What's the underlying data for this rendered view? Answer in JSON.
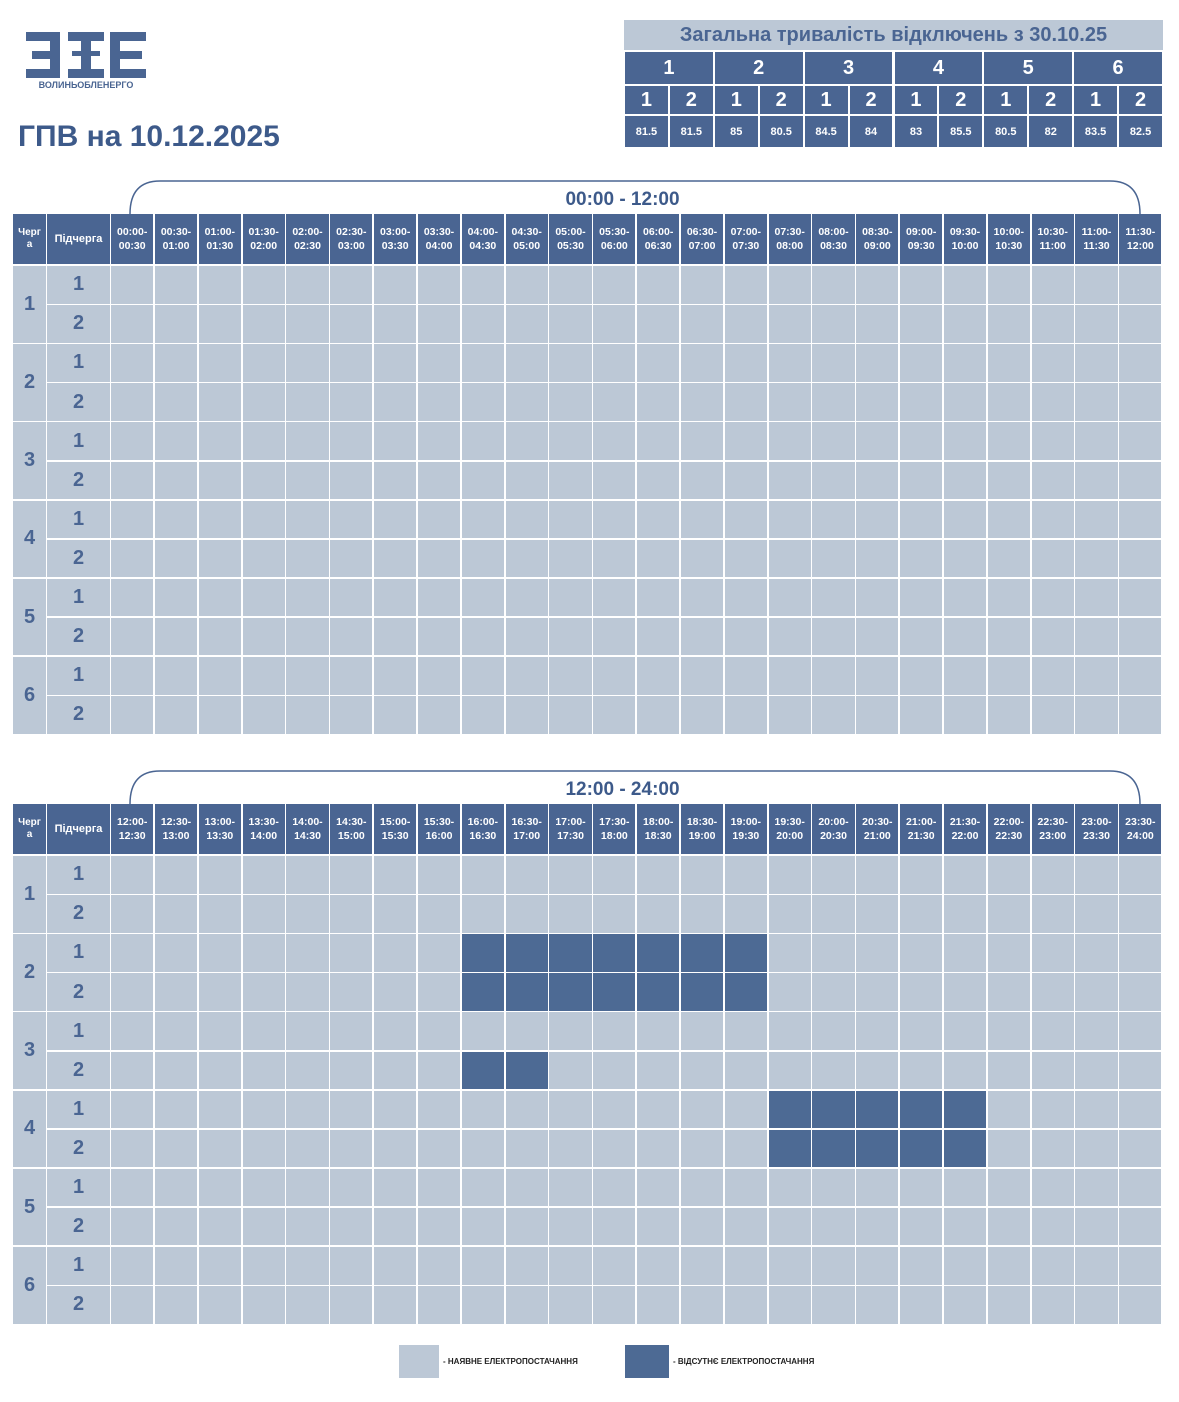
{
  "logo": {
    "name": "ВОЛИНЬОБЛЕНЕРГО"
  },
  "title": "ГПВ на 10.12.2025",
  "summary": {
    "title": "Загальна тривалість відключень з 30.10.25",
    "groups": [
      "1",
      "2",
      "3",
      "4",
      "5",
      "6"
    ],
    "subgroups": [
      "1",
      "2"
    ],
    "values": [
      [
        81.5,
        81.5
      ],
      [
        85,
        80.5
      ],
      [
        84.5,
        84
      ],
      [
        83,
        85.5
      ],
      [
        80.5,
        82
      ],
      [
        83.5,
        82.5
      ]
    ]
  },
  "schedules": [
    {
      "range": "00:00 - 12:00",
      "queue_header": [
        "Черг",
        "а"
      ],
      "subqueue_header": "Підчерга",
      "slots": [
        [
          "00:00-",
          "00:30"
        ],
        [
          "00:30-",
          "01:00"
        ],
        [
          "01:00-",
          "01:30"
        ],
        [
          "01:30-",
          "02:00"
        ],
        [
          "02:00-",
          "02:30"
        ],
        [
          "02:30-",
          "03:00"
        ],
        [
          "03:00-",
          "03:30"
        ],
        [
          "03:30-",
          "04:00"
        ],
        [
          "04:00-",
          "04:30"
        ],
        [
          "04:30-",
          "05:00"
        ],
        [
          "05:00-",
          "05:30"
        ],
        [
          "05:30-",
          "06:00"
        ],
        [
          "06:00-",
          "06:30"
        ],
        [
          "06:30-",
          "07:00"
        ],
        [
          "07:00-",
          "07:30"
        ],
        [
          "07:30-",
          "08:00"
        ],
        [
          "08:00-",
          "08:30"
        ],
        [
          "08:30-",
          "09:00"
        ],
        [
          "09:00-",
          "09:30"
        ],
        [
          "09:30-",
          "10:00"
        ],
        [
          "10:00-",
          "10:30"
        ],
        [
          "10:30-",
          "11:00"
        ],
        [
          "11:00-",
          "11:30"
        ],
        [
          "11:30-",
          "12:00"
        ]
      ],
      "queues": [
        "1",
        "2",
        "3",
        "4",
        "5",
        "6"
      ],
      "subqueues": [
        "1",
        "2"
      ],
      "outages": [
        [
          0,
          0,
          0,
          0,
          0,
          0,
          0,
          0,
          0,
          0,
          0,
          0,
          0,
          0,
          0,
          0,
          0,
          0,
          0,
          0,
          0,
          0,
          0,
          0
        ],
        [
          0,
          0,
          0,
          0,
          0,
          0,
          0,
          0,
          0,
          0,
          0,
          0,
          0,
          0,
          0,
          0,
          0,
          0,
          0,
          0,
          0,
          0,
          0,
          0
        ],
        [
          0,
          0,
          0,
          0,
          0,
          0,
          0,
          0,
          0,
          0,
          0,
          0,
          0,
          0,
          0,
          0,
          0,
          0,
          0,
          0,
          0,
          0,
          0,
          0
        ],
        [
          0,
          0,
          0,
          0,
          0,
          0,
          0,
          0,
          0,
          0,
          0,
          0,
          0,
          0,
          0,
          0,
          0,
          0,
          0,
          0,
          0,
          0,
          0,
          0
        ],
        [
          0,
          0,
          0,
          0,
          0,
          0,
          0,
          0,
          0,
          0,
          0,
          0,
          0,
          0,
          0,
          0,
          0,
          0,
          0,
          0,
          0,
          0,
          0,
          0
        ],
        [
          0,
          0,
          0,
          0,
          0,
          0,
          0,
          0,
          0,
          0,
          0,
          0,
          0,
          0,
          0,
          0,
          0,
          0,
          0,
          0,
          0,
          0,
          0,
          0
        ],
        [
          0,
          0,
          0,
          0,
          0,
          0,
          0,
          0,
          0,
          0,
          0,
          0,
          0,
          0,
          0,
          0,
          0,
          0,
          0,
          0,
          0,
          0,
          0,
          0
        ],
        [
          0,
          0,
          0,
          0,
          0,
          0,
          0,
          0,
          0,
          0,
          0,
          0,
          0,
          0,
          0,
          0,
          0,
          0,
          0,
          0,
          0,
          0,
          0,
          0
        ],
        [
          0,
          0,
          0,
          0,
          0,
          0,
          0,
          0,
          0,
          0,
          0,
          0,
          0,
          0,
          0,
          0,
          0,
          0,
          0,
          0,
          0,
          0,
          0,
          0
        ],
        [
          0,
          0,
          0,
          0,
          0,
          0,
          0,
          0,
          0,
          0,
          0,
          0,
          0,
          0,
          0,
          0,
          0,
          0,
          0,
          0,
          0,
          0,
          0,
          0
        ],
        [
          0,
          0,
          0,
          0,
          0,
          0,
          0,
          0,
          0,
          0,
          0,
          0,
          0,
          0,
          0,
          0,
          0,
          0,
          0,
          0,
          0,
          0,
          0,
          0
        ],
        [
          0,
          0,
          0,
          0,
          0,
          0,
          0,
          0,
          0,
          0,
          0,
          0,
          0,
          0,
          0,
          0,
          0,
          0,
          0,
          0,
          0,
          0,
          0,
          0
        ]
      ]
    },
    {
      "range": "12:00 - 24:00",
      "queue_header": [
        "Черг",
        "а"
      ],
      "subqueue_header": "Підчерга",
      "slots": [
        [
          "12:00-",
          "12:30"
        ],
        [
          "12:30-",
          "13:00"
        ],
        [
          "13:00-",
          "13:30"
        ],
        [
          "13:30-",
          "14:00"
        ],
        [
          "14:00-",
          "14:30"
        ],
        [
          "14:30-",
          "15:00"
        ],
        [
          "15:00-",
          "15:30"
        ],
        [
          "15:30-",
          "16:00"
        ],
        [
          "16:00-",
          "16:30"
        ],
        [
          "16:30-",
          "17:00"
        ],
        [
          "17:00-",
          "17:30"
        ],
        [
          "17:30-",
          "18:00"
        ],
        [
          "18:00-",
          "18:30"
        ],
        [
          "18:30-",
          "19:00"
        ],
        [
          "19:00-",
          "19:30"
        ],
        [
          "19:30-",
          "20:00"
        ],
        [
          "20:00-",
          "20:30"
        ],
        [
          "20:30-",
          "21:00"
        ],
        [
          "21:00-",
          "21:30"
        ],
        [
          "21:30-",
          "22:00"
        ],
        [
          "22:00-",
          "22:30"
        ],
        [
          "22:30-",
          "23:00"
        ],
        [
          "23:00-",
          "23:30"
        ],
        [
          "23:30-",
          "24:00"
        ]
      ],
      "queues": [
        "1",
        "2",
        "3",
        "4",
        "5",
        "6"
      ],
      "subqueues": [
        "1",
        "2"
      ],
      "outages": [
        [
          0,
          0,
          0,
          0,
          0,
          0,
          0,
          0,
          0,
          0,
          0,
          0,
          0,
          0,
          0,
          0,
          0,
          0,
          0,
          0,
          0,
          0,
          0,
          0
        ],
        [
          0,
          0,
          0,
          0,
          0,
          0,
          0,
          0,
          0,
          0,
          0,
          0,
          0,
          0,
          0,
          0,
          0,
          0,
          0,
          0,
          0,
          0,
          0,
          0
        ],
        [
          0,
          0,
          0,
          0,
          0,
          0,
          0,
          0,
          1,
          1,
          1,
          1,
          1,
          1,
          1,
          0,
          0,
          0,
          0,
          0,
          0,
          0,
          0,
          0
        ],
        [
          0,
          0,
          0,
          0,
          0,
          0,
          0,
          0,
          1,
          1,
          1,
          1,
          1,
          1,
          1,
          0,
          0,
          0,
          0,
          0,
          0,
          0,
          0,
          0
        ],
        [
          0,
          0,
          0,
          0,
          0,
          0,
          0,
          0,
          0,
          0,
          0,
          0,
          0,
          0,
          0,
          0,
          0,
          0,
          0,
          0,
          0,
          0,
          0,
          0
        ],
        [
          0,
          0,
          0,
          0,
          0,
          0,
          0,
          0,
          1,
          1,
          0,
          0,
          0,
          0,
          0,
          0,
          0,
          0,
          0,
          0,
          0,
          0,
          0,
          0
        ],
        [
          0,
          0,
          0,
          0,
          0,
          0,
          0,
          0,
          0,
          0,
          0,
          0,
          0,
          0,
          0,
          1,
          1,
          1,
          1,
          1,
          0,
          0,
          0,
          0
        ],
        [
          0,
          0,
          0,
          0,
          0,
          0,
          0,
          0,
          0,
          0,
          0,
          0,
          0,
          0,
          0,
          1,
          1,
          1,
          1,
          1,
          0,
          0,
          0,
          0
        ],
        [
          0,
          0,
          0,
          0,
          0,
          0,
          0,
          0,
          0,
          0,
          0,
          0,
          0,
          0,
          0,
          0,
          0,
          0,
          0,
          0,
          0,
          0,
          0,
          0
        ],
        [
          0,
          0,
          0,
          0,
          0,
          0,
          0,
          0,
          0,
          0,
          0,
          0,
          0,
          0,
          0,
          0,
          0,
          0,
          0,
          0,
          0,
          0,
          0,
          0
        ],
        [
          0,
          0,
          0,
          0,
          0,
          0,
          0,
          0,
          0,
          0,
          0,
          0,
          0,
          0,
          0,
          0,
          0,
          0,
          0,
          0,
          0,
          0,
          0,
          0
        ],
        [
          0,
          0,
          0,
          0,
          0,
          0,
          0,
          0,
          0,
          0,
          0,
          0,
          0,
          0,
          0,
          0,
          0,
          0,
          0,
          0,
          0,
          0,
          0,
          0
        ]
      ]
    }
  ],
  "legend": {
    "available": "- НАЯВНЕ ЕЛЕКТРОПОСТАЧАННЯ",
    "absent": "- ВІДСУТНЄ ЕЛЕКТРОПОСТАЧАННЯ"
  }
}
